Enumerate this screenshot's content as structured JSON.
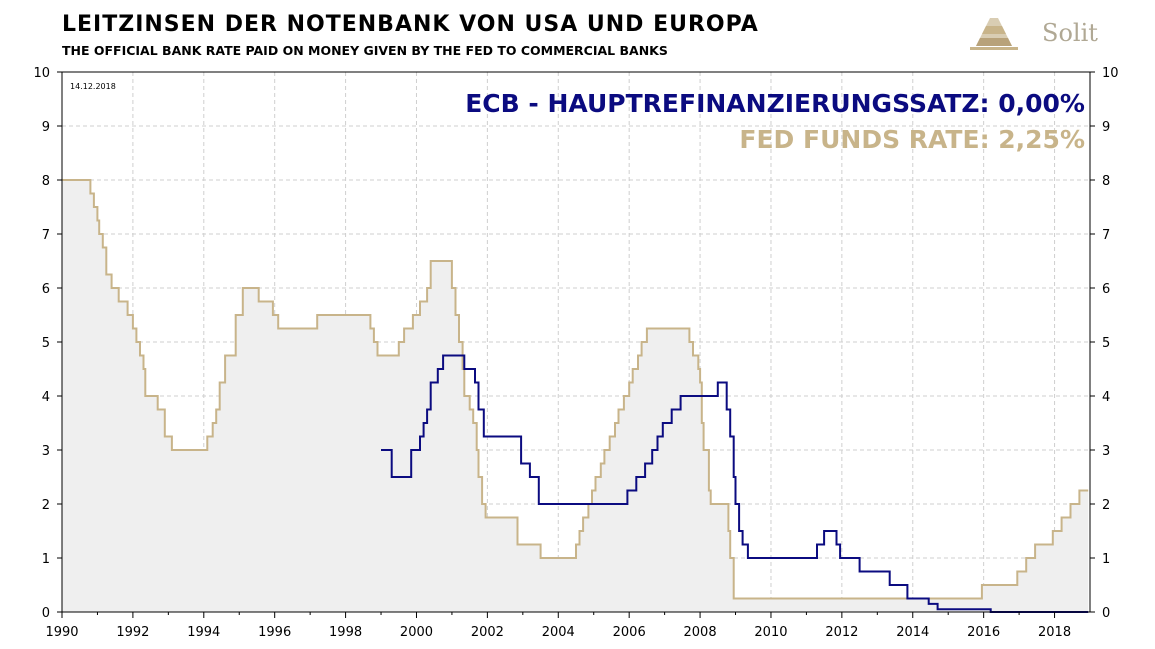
{
  "header": {
    "title": "LEITZINSEN DER NOTENBANK VON USA UND EUROPA",
    "subtitle": "THE OFFICIAL BANK RATE PAID ON MONEY GIVEN BY THE FED TO COMMERCIAL BANKS",
    "logo_text": "Solit"
  },
  "colors": {
    "ecb": "#0b0b80",
    "fed": "#c8b48a",
    "fill": "#efefef"
  },
  "chart_data": {
    "type": "line",
    "title": "LEITZINSEN DER NOTENBANK VON USA UND EUROPA",
    "subtitle": "THE OFFICIAL BANK RATE PAID ON MONEY GIVEN BY THE FED TO COMMERCIAL BANKS",
    "date_label": "14.12.2018",
    "xlim": [
      1990,
      2019
    ],
    "ylim": [
      0,
      10
    ],
    "x_ticks": [
      1990,
      1992,
      1994,
      1996,
      1998,
      2000,
      2002,
      2004,
      2006,
      2008,
      2010,
      2012,
      2014,
      2016,
      2018
    ],
    "y_ticks": [
      0,
      1,
      2,
      3,
      4,
      5,
      6,
      7,
      8,
      9,
      10
    ],
    "grid": true,
    "annotations": [
      "ECB - HAUPTREFINANZIERUNGSSATZ: 0,00%",
      "FED FUNDS RATE: 2,25%"
    ],
    "series": [
      {
        "step": true,
        "fill": true,
        "points": [
          [
            1990.0,
            8.0
          ],
          [
            1990.8,
            7.75
          ],
          [
            1990.9,
            7.5
          ],
          [
            1991.0,
            7.25
          ],
          [
            1991.05,
            7.0
          ],
          [
            1991.15,
            6.75
          ],
          [
            1991.25,
            6.25
          ],
          [
            1991.4,
            6.0
          ],
          [
            1991.6,
            5.75
          ],
          [
            1991.85,
            5.5
          ],
          [
            1992.0,
            5.25
          ],
          [
            1992.1,
            5.0
          ],
          [
            1992.2,
            4.75
          ],
          [
            1992.3,
            4.5
          ],
          [
            1992.35,
            4.0
          ],
          [
            1992.7,
            3.75
          ],
          [
            1992.9,
            3.25
          ],
          [
            1993.1,
            3.0
          ],
          [
            1994.1,
            3.25
          ],
          [
            1994.25,
            3.5
          ],
          [
            1994.35,
            3.75
          ],
          [
            1994.45,
            4.25
          ],
          [
            1994.6,
            4.75
          ],
          [
            1994.9,
            5.5
          ],
          [
            1995.1,
            6.0
          ],
          [
            1995.55,
            5.75
          ],
          [
            1995.95,
            5.5
          ],
          [
            1996.1,
            5.25
          ],
          [
            1997.2,
            5.5
          ],
          [
            1998.7,
            5.25
          ],
          [
            1998.8,
            5.0
          ],
          [
            1998.9,
            4.75
          ],
          [
            1999.5,
            5.0
          ],
          [
            1999.65,
            5.25
          ],
          [
            1999.9,
            5.5
          ],
          [
            2000.1,
            5.75
          ],
          [
            2000.3,
            6.0
          ],
          [
            2000.4,
            6.5
          ],
          [
            2001.0,
            6.0
          ],
          [
            2001.1,
            5.5
          ],
          [
            2001.2,
            5.0
          ],
          [
            2001.3,
            4.5
          ],
          [
            2001.35,
            4.0
          ],
          [
            2001.5,
            3.75
          ],
          [
            2001.6,
            3.5
          ],
          [
            2001.7,
            3.0
          ],
          [
            2001.75,
            2.5
          ],
          [
            2001.85,
            2.0
          ],
          [
            2001.95,
            1.75
          ],
          [
            2002.85,
            1.25
          ],
          [
            2003.5,
            1.0
          ],
          [
            2004.5,
            1.25
          ],
          [
            2004.6,
            1.5
          ],
          [
            2004.7,
            1.75
          ],
          [
            2004.85,
            2.0
          ],
          [
            2004.95,
            2.25
          ],
          [
            2005.05,
            2.5
          ],
          [
            2005.2,
            2.75
          ],
          [
            2005.3,
            3.0
          ],
          [
            2005.45,
            3.25
          ],
          [
            2005.6,
            3.5
          ],
          [
            2005.7,
            3.75
          ],
          [
            2005.85,
            4.0
          ],
          [
            2006.0,
            4.25
          ],
          [
            2006.1,
            4.5
          ],
          [
            2006.25,
            4.75
          ],
          [
            2006.35,
            5.0
          ],
          [
            2006.5,
            5.25
          ],
          [
            2007.7,
            5.0
          ],
          [
            2007.8,
            4.75
          ],
          [
            2007.95,
            4.5
          ],
          [
            2008.0,
            4.25
          ],
          [
            2008.05,
            3.5
          ],
          [
            2008.1,
            3.0
          ],
          [
            2008.25,
            2.25
          ],
          [
            2008.3,
            2.0
          ],
          [
            2008.8,
            1.5
          ],
          [
            2008.85,
            1.0
          ],
          [
            2008.95,
            0.25
          ],
          [
            2015.95,
            0.5
          ],
          [
            2016.95,
            0.75
          ],
          [
            2017.2,
            1.0
          ],
          [
            2017.45,
            1.25
          ],
          [
            2017.95,
            1.5
          ],
          [
            2018.2,
            1.75
          ],
          [
            2018.45,
            2.0
          ],
          [
            2018.7,
            2.25
          ],
          [
            2018.95,
            2.25
          ]
        ]
      },
      {
        "step": true,
        "fill": false,
        "points": [
          [
            1999.0,
            3.0
          ],
          [
            1999.3,
            2.5
          ],
          [
            1999.85,
            3.0
          ],
          [
            2000.1,
            3.25
          ],
          [
            2000.2,
            3.5
          ],
          [
            2000.3,
            3.75
          ],
          [
            2000.4,
            4.25
          ],
          [
            2000.6,
            4.5
          ],
          [
            2000.75,
            4.75
          ],
          [
            2001.35,
            4.5
          ],
          [
            2001.65,
            4.25
          ],
          [
            2001.75,
            3.75
          ],
          [
            2001.9,
            3.25
          ],
          [
            2002.95,
            2.75
          ],
          [
            2003.2,
            2.5
          ],
          [
            2003.45,
            2.0
          ],
          [
            2005.95,
            2.25
          ],
          [
            2006.2,
            2.5
          ],
          [
            2006.45,
            2.75
          ],
          [
            2006.65,
            3.0
          ],
          [
            2006.8,
            3.25
          ],
          [
            2006.95,
            3.5
          ],
          [
            2007.2,
            3.75
          ],
          [
            2007.45,
            4.0
          ],
          [
            2008.5,
            4.25
          ],
          [
            2008.75,
            3.75
          ],
          [
            2008.85,
            3.25
          ],
          [
            2008.95,
            2.5
          ],
          [
            2009.0,
            2.0
          ],
          [
            2009.1,
            1.5
          ],
          [
            2009.2,
            1.25
          ],
          [
            2009.35,
            1.0
          ],
          [
            2011.3,
            1.25
          ],
          [
            2011.5,
            1.5
          ],
          [
            2011.85,
            1.25
          ],
          [
            2011.95,
            1.0
          ],
          [
            2012.5,
            0.75
          ],
          [
            2013.35,
            0.5
          ],
          [
            2013.85,
            0.25
          ],
          [
            2014.45,
            0.15
          ],
          [
            2014.7,
            0.05
          ],
          [
            2016.2,
            0.0
          ],
          [
            2018.95,
            0.0
          ]
        ]
      }
    ]
  }
}
